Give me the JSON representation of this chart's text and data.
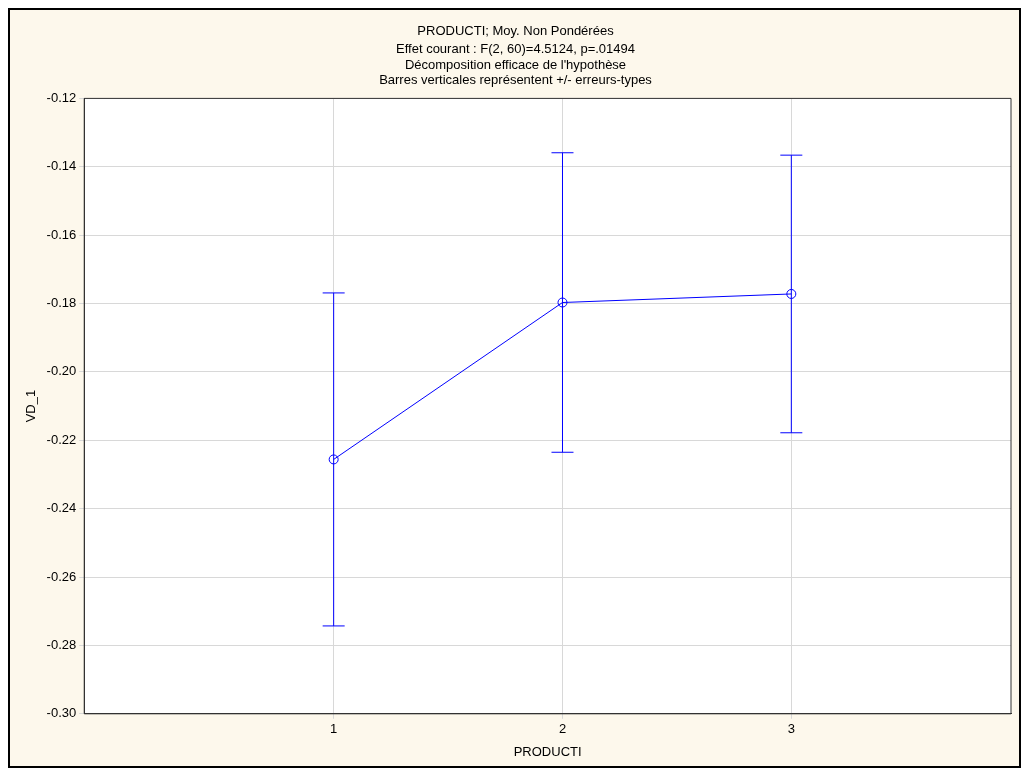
{
  "chart_data": {
    "type": "line",
    "title": "PRODUCTI; Moy. Non Pondérées",
    "subtitle": "Effet courant : F(2, 60)=4.5124, p=.01494\nDécomposition efficace de l'hypothèse\nBarres verticales représentent +/- erreurs-types",
    "xlabel": "PRODUCTI",
    "ylabel": "VD_1",
    "categories": [
      "1",
      "2",
      "3"
    ],
    "series": [
      {
        "color": "#0000ff",
        "values": [
          -0.2256,
          -0.1797,
          -0.1772
        ],
        "errors": [
          0.0487,
          0.0438,
          0.0406
        ]
      }
    ],
    "ylim": [
      -0.3,
      -0.12
    ],
    "yticks": [
      {
        "value": -0.3,
        "label": "-0.30"
      },
      -0.28,
      -0.26,
      -0.24,
      -0.22,
      {
        "value": -0.2,
        "label": "-0.20"
      },
      -0.18,
      -0.16,
      -0.14,
      -0.12
    ],
    "grid": true,
    "legend": false,
    "marker": "circle",
    "line_style": "solid"
  }
}
